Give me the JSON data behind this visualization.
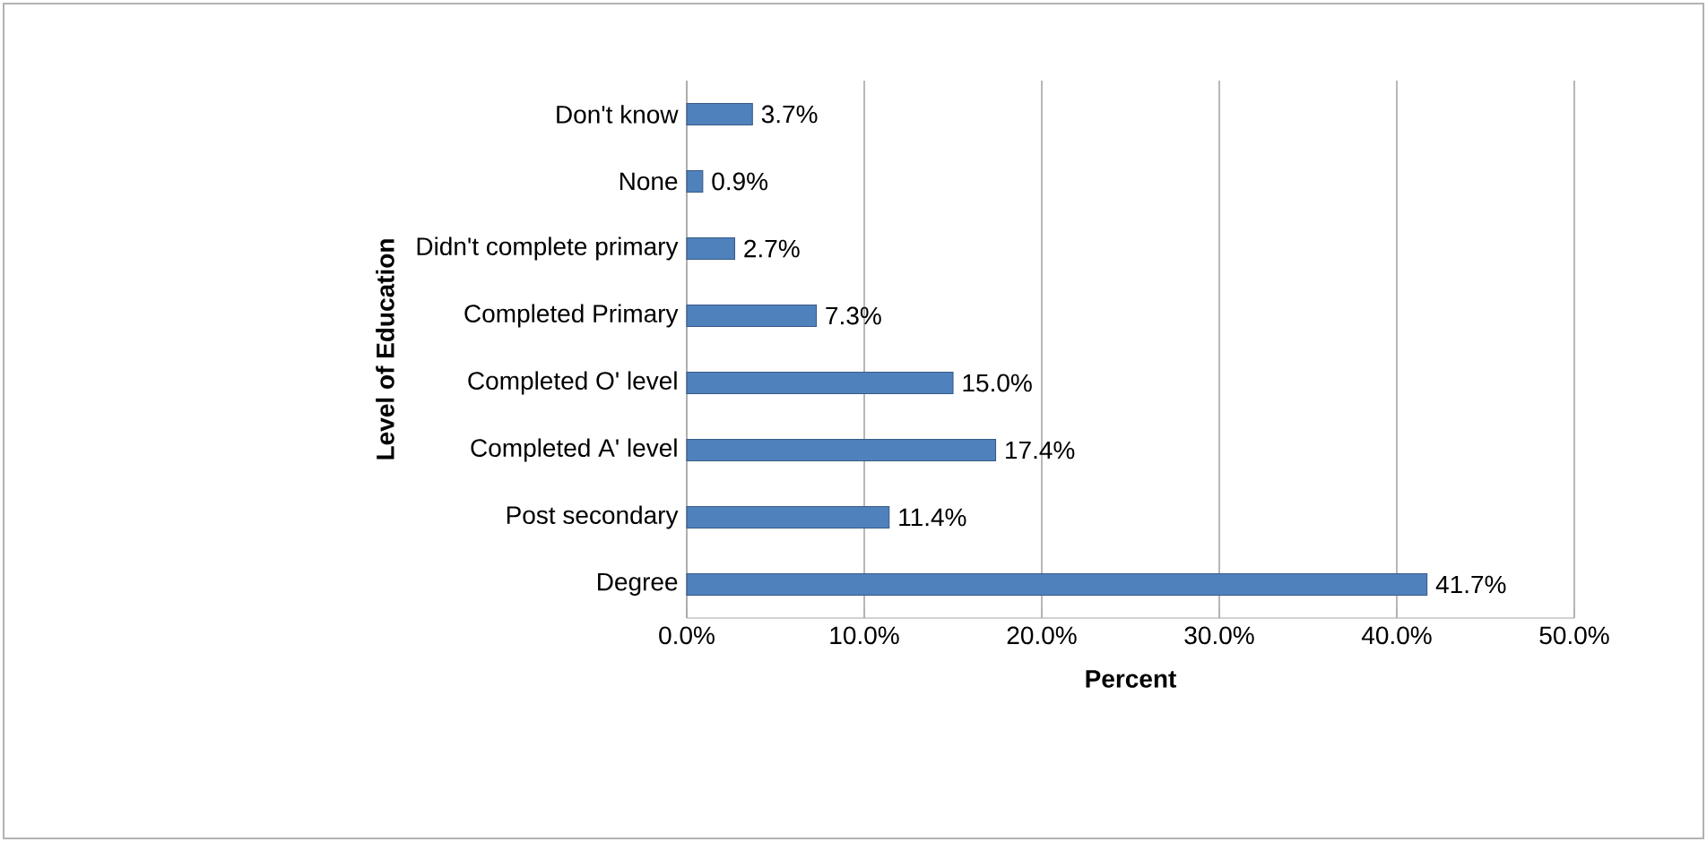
{
  "chart_data": {
    "type": "bar",
    "orientation": "horizontal",
    "categories": [
      "Don't know",
      "None",
      "Didn't complete primary",
      "Completed Primary",
      "Completed O' level",
      "Completed A' level",
      "Post secondary",
      "Degree"
    ],
    "values": [
      3.7,
      0.9,
      2.7,
      7.3,
      15.0,
      17.4,
      11.4,
      41.7
    ],
    "value_labels": [
      "3.7%",
      "0.9%",
      "2.7%",
      "7.3%",
      "15.0%",
      "17.4%",
      "11.4%",
      "41.7%"
    ],
    "color": "#4f81bd",
    "xlabel": "Percent",
    "ylabel": "Level of Education",
    "xlim": [
      0,
      50
    ],
    "xticks": [
      {
        "value": 0,
        "label": "0.0%"
      },
      {
        "value": 10,
        "label": "10.0%"
      },
      {
        "value": 20,
        "label": "20.0%"
      },
      {
        "value": 30,
        "label": "30.0%"
      },
      {
        "value": 40,
        "label": "40.0%"
      },
      {
        "value": 50,
        "label": "50.0%"
      }
    ],
    "grid": "x"
  }
}
